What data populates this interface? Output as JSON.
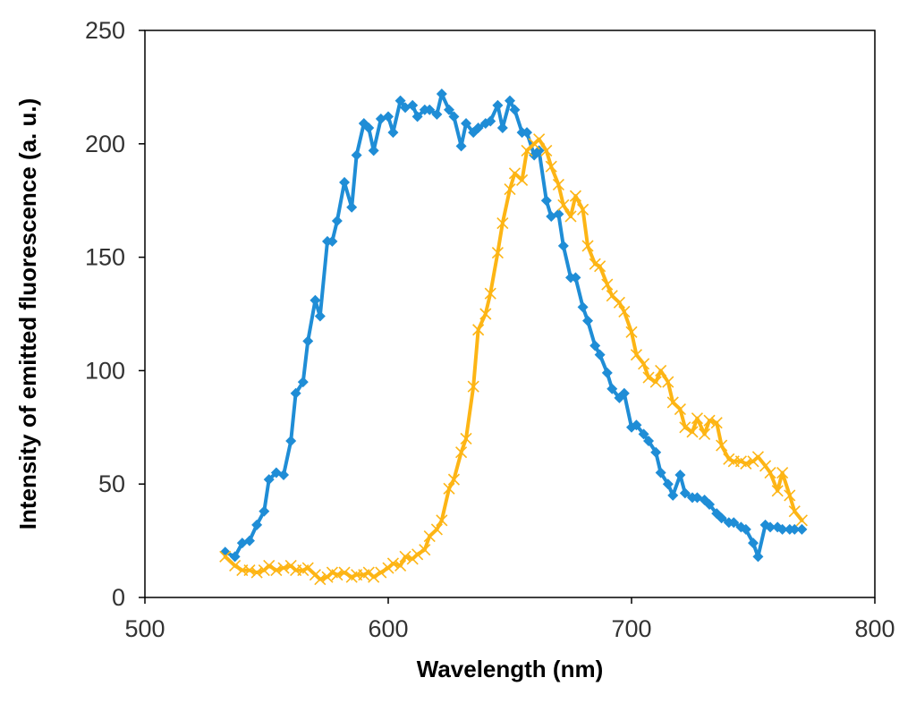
{
  "chart_data": {
    "type": "line",
    "title": "",
    "xlabel": "Wavelength (nm)",
    "ylabel": "Intensity of emitted fluorescence (a. u.)",
    "xlim": [
      500,
      800
    ],
    "ylim": [
      0,
      250
    ],
    "xticks": [
      500,
      600,
      700,
      800
    ],
    "yticks": [
      0,
      50,
      100,
      150,
      200,
      250
    ],
    "grid": false,
    "legend": "none",
    "series": [
      {
        "name": "blue",
        "color": "#1f8dd6",
        "marker": "diamond",
        "x": [
          533,
          537,
          540,
          543,
          546,
          549,
          551,
          554,
          557,
          560,
          562,
          565,
          567,
          570,
          572,
          575,
          577,
          579,
          582,
          585,
          587,
          590,
          592,
          594,
          597,
          600,
          602,
          605,
          607,
          610,
          612,
          615,
          617,
          620,
          622,
          625,
          627,
          630,
          632,
          635,
          637,
          640,
          642,
          645,
          647,
          650,
          652,
          655,
          657,
          660,
          662,
          665,
          667,
          670,
          672,
          675,
          677,
          680,
          682,
          685,
          687,
          690,
          692,
          695,
          697,
          700,
          702,
          705,
          707,
          710,
          712,
          715,
          717,
          720,
          722,
          725,
          727,
          730,
          732,
          735,
          737,
          740,
          742,
          745,
          747,
          750,
          752,
          755,
          757,
          760,
          762,
          765,
          767,
          770
        ],
        "y": [
          20,
          18,
          24,
          25,
          32,
          38,
          52,
          55,
          54,
          69,
          90,
          95,
          113,
          131,
          124,
          157,
          157,
          166,
          183,
          172,
          195,
          209,
          207,
          197,
          211,
          212,
          205,
          219,
          216,
          217,
          212,
          215,
          215,
          213,
          222,
          215,
          212,
          199,
          209,
          205,
          207,
          209,
          210,
          217,
          207,
          219,
          215,
          205,
          205,
          195,
          197,
          175,
          168,
          169,
          155,
          141,
          141,
          128,
          122,
          111,
          107,
          99,
          92,
          88,
          90,
          75,
          76,
          72,
          69,
          64,
          55,
          50,
          45,
          54,
          46,
          44,
          44,
          43,
          41,
          37,
          35,
          33,
          33,
          31,
          30,
          24,
          18,
          32,
          31,
          31,
          30,
          30,
          30,
          30
        ]
      },
      {
        "name": "orange",
        "color": "#fdb515",
        "marker": "x",
        "x": [
          533,
          537,
          540,
          543,
          546,
          549,
          551,
          554,
          557,
          560,
          562,
          565,
          567,
          570,
          572,
          575,
          577,
          579,
          582,
          585,
          587,
          590,
          592,
          594,
          597,
          600,
          602,
          605,
          607,
          610,
          612,
          615,
          617,
          620,
          622,
          625,
          627,
          630,
          632,
          635,
          637,
          640,
          642,
          645,
          647,
          650,
          652,
          655,
          657,
          660,
          662,
          665,
          667,
          670,
          672,
          675,
          677,
          680,
          682,
          685,
          687,
          690,
          692,
          695,
          697,
          700,
          702,
          705,
          707,
          710,
          712,
          715,
          717,
          720,
          722,
          725,
          727,
          730,
          732,
          735,
          737,
          740,
          742,
          745,
          747,
          750,
          752,
          755,
          757,
          760,
          762,
          765,
          767,
          770
        ],
        "y": [
          18,
          14,
          12,
          12,
          11,
          12,
          14,
          12,
          13,
          14,
          12,
          12,
          13,
          10,
          8,
          9,
          11,
          10,
          11,
          9,
          10,
          10,
          11,
          9,
          11,
          13,
          15,
          14,
          18,
          17,
          19,
          21,
          27,
          30,
          34,
          48,
          52,
          64,
          70,
          93,
          118,
          125,
          134,
          152,
          165,
          180,
          187,
          184,
          197,
          200,
          202,
          197,
          190,
          182,
          173,
          168,
          177,
          171,
          155,
          147,
          146,
          138,
          133,
          130,
          126,
          117,
          107,
          103,
          97,
          95,
          100,
          95,
          86,
          83,
          75,
          73,
          79,
          72,
          78,
          77,
          67,
          61,
          60,
          60,
          59,
          60,
          62,
          58,
          55,
          47,
          55,
          45,
          38,
          34
        ]
      }
    ]
  }
}
